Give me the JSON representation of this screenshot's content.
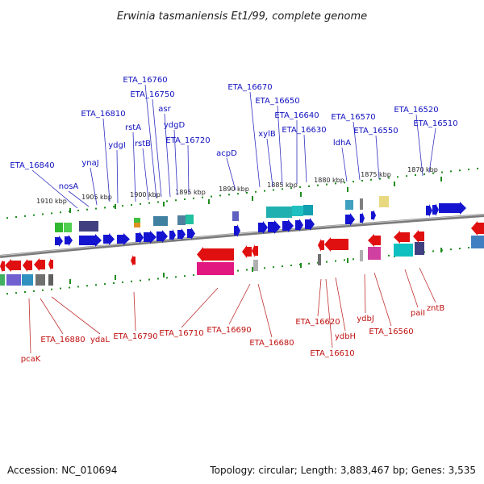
{
  "title": "Erwinia tasmaniensis Et1/99, complete genome",
  "footer": {
    "accession": "Accession: NC_010694",
    "stats": "Topology: circular; Length: 3,883,467 bp; Genes: 3,535"
  },
  "colors": {
    "forward": "#1414d0",
    "reverse": "#e01010",
    "backbone": "#808080",
    "tick": "#1e8c1e"
  },
  "kbp_labels": [
    "1910 kbp",
    "1905 kbp",
    "1900 kbp",
    "1895 kbp",
    "1890 kbp",
    "1885 kbp",
    "1880 kbp",
    "1875 kbp",
    "1870 kbp"
  ],
  "forward_genes": [
    "ETA_16840",
    "nosA",
    "ynaJ",
    "ydgI",
    "ETA_16810",
    "rstA",
    "rstB",
    "ETA_16760",
    "ETA_16750",
    "asr",
    "ydgD",
    "ETA_16720",
    "acpD",
    "ETA_16670",
    "xylB",
    "ETA_16650",
    "ETA_16640",
    "ETA_16630",
    "ldhA",
    "ETA_16570",
    "ETA_16550",
    "ETA_16520",
    "ETA_16510"
  ],
  "reverse_genes": [
    "pcaK",
    "ETA_16880",
    "ydaL",
    "ETA_16790",
    "ETA_16710",
    "ETA_16690",
    "ETA_16680",
    "ETA_16620",
    "ETA_16610",
    "ydbH",
    "ydbJ",
    "ETA_16560",
    "paiI",
    "zntB"
  ]
}
